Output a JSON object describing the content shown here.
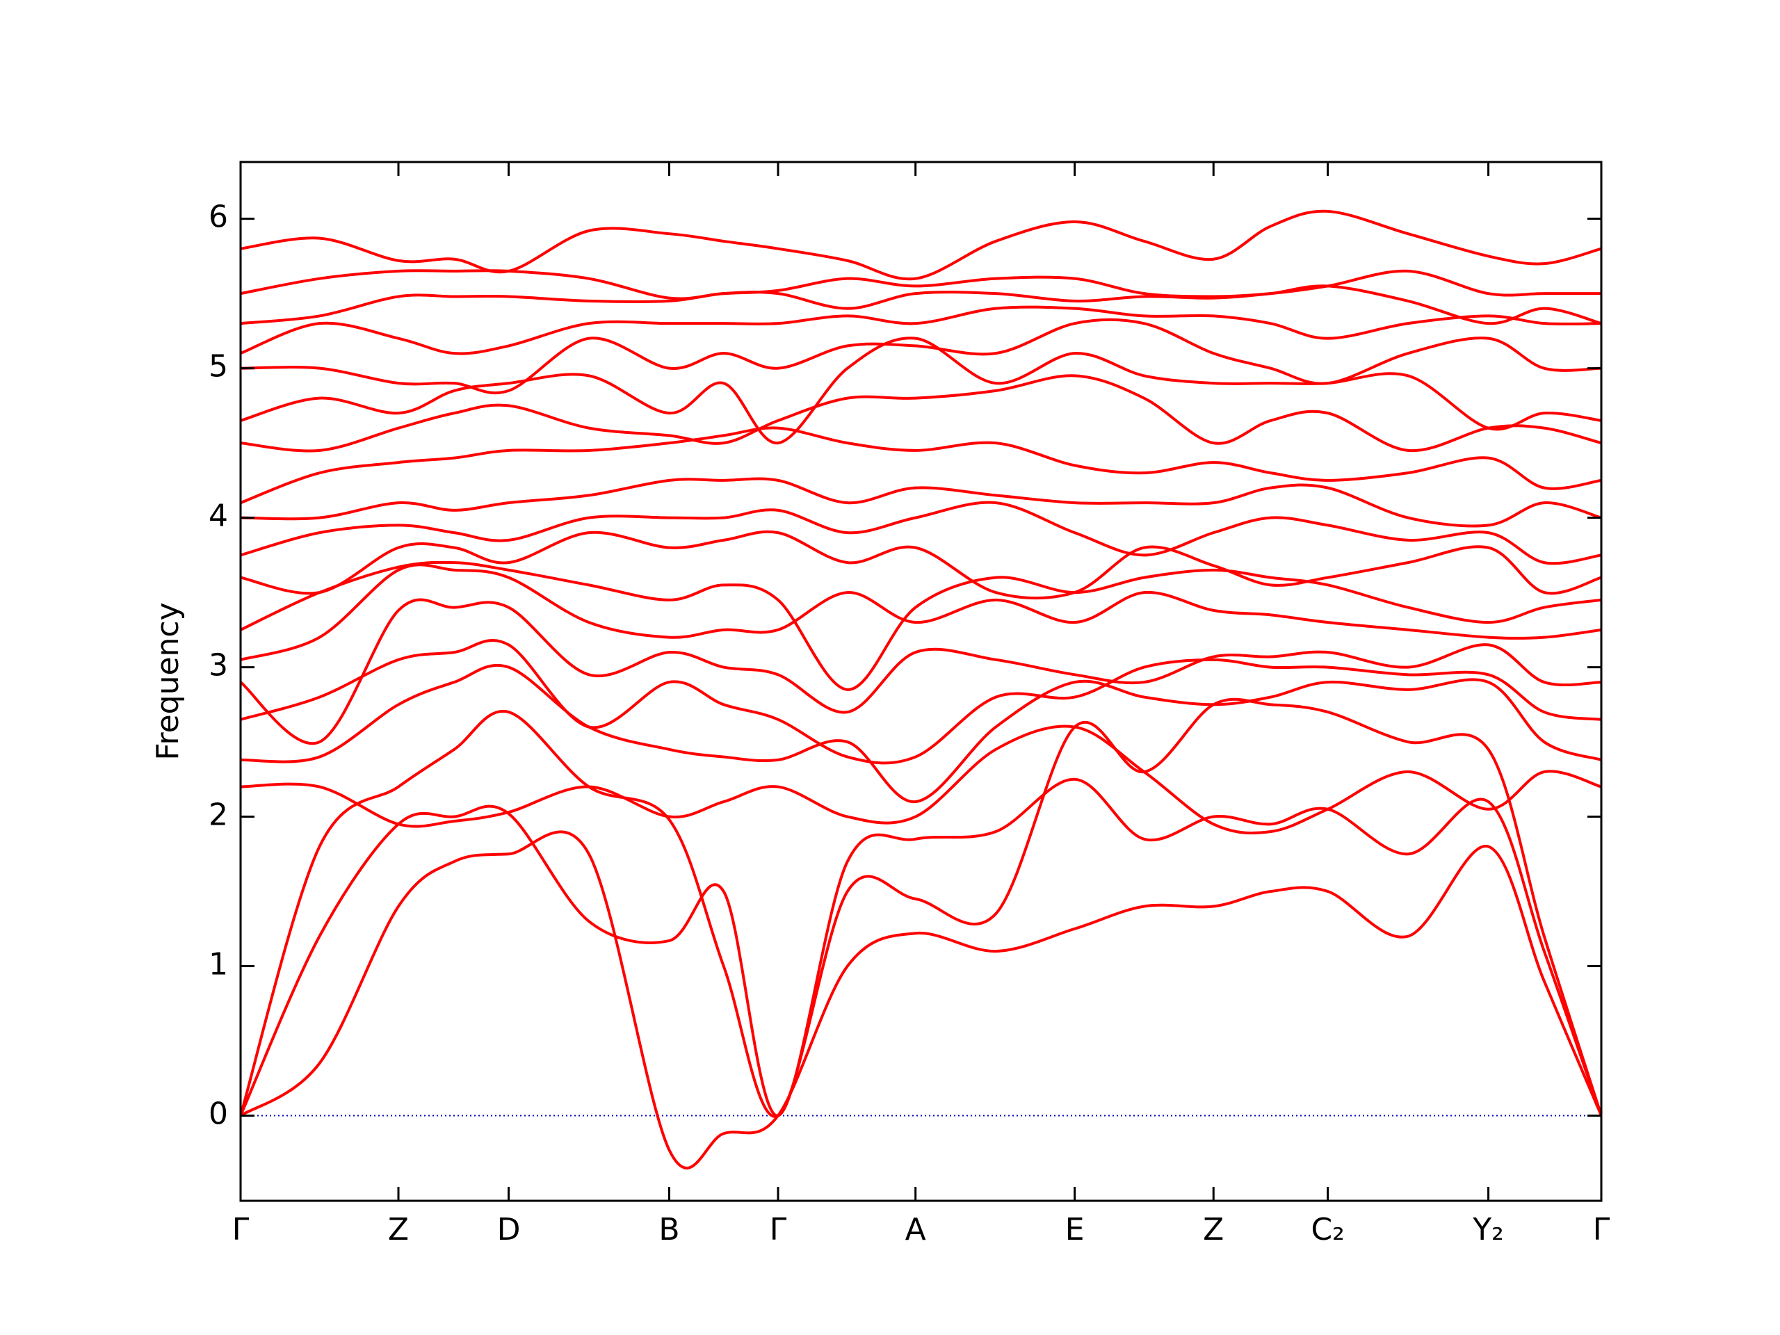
{
  "chart_data": {
    "type": "line",
    "y_label": "Frequency",
    "color": "#ff0000",
    "hline": 0,
    "hline_color": "#0000cc",
    "xlim": [
      0,
      1
    ],
    "ylim": [
      -0.57,
      6.38
    ],
    "yticks": [
      0,
      1,
      2,
      3,
      4,
      5,
      6
    ],
    "xticks": [
      {
        "value": 0,
        "label": "Γ"
      },
      {
        "value": 0.116,
        "label": "Z"
      },
      {
        "value": 0.197,
        "label": "D"
      },
      {
        "value": 0.315,
        "label": "B"
      },
      {
        "value": 0.395,
        "label": "Γ"
      },
      {
        "value": 0.496,
        "label": "A"
      },
      {
        "value": 0.613,
        "label": "E"
      },
      {
        "value": 0.715,
        "label": "Z"
      },
      {
        "value": 0.799,
        "label": "C₂"
      },
      {
        "value": 0.917,
        "label": "Y₂"
      },
      {
        "value": 1,
        "label": "Γ"
      }
    ],
    "x": [
      0,
      0.058,
      0.116,
      0.157,
      0.197,
      0.256,
      0.315,
      0.355,
      0.395,
      0.446,
      0.496,
      0.555,
      0.613,
      0.664,
      0.715,
      0.757,
      0.799,
      0.858,
      0.917,
      0.958,
      1
    ],
    "series": [
      {
        "values": [
          0,
          0.35,
          1.4,
          1.7,
          1.75,
          1.75,
          -0.23,
          -0.12,
          0,
          1.0,
          1.22,
          1.1,
          1.25,
          1.4,
          1.4,
          1.5,
          1.5,
          1.2,
          1.8,
          0.9,
          0
        ]
      },
      {
        "values": [
          0,
          1.2,
          1.95,
          2.0,
          2.02,
          1.3,
          1.17,
          1.5,
          0,
          1.7,
          1.85,
          1.9,
          2.25,
          1.85,
          2.0,
          1.95,
          2.05,
          1.75,
          2.1,
          1.1,
          0
        ]
      },
      {
        "values": [
          0,
          1.8,
          2.2,
          2.45,
          2.7,
          2.2,
          1.98,
          1.0,
          0,
          1.5,
          1.45,
          1.35,
          2.6,
          2.3,
          2.75,
          2.75,
          2.7,
          2.5,
          2.45,
          1.2,
          0
        ]
      },
      {
        "values": [
          2.2,
          2.2,
          1.95,
          1.97,
          2.03,
          2.2,
          2.0,
          2.1,
          2.2,
          2.0,
          2.0,
          2.45,
          2.6,
          2.3,
          1.95,
          1.9,
          2.05,
          2.3,
          2.05,
          2.3,
          2.2
        ]
      },
      {
        "values": [
          2.38,
          2.4,
          2.75,
          2.9,
          3.0,
          2.6,
          2.45,
          2.4,
          2.38,
          2.5,
          2.1,
          2.6,
          2.9,
          2.8,
          2.75,
          2.8,
          2.9,
          2.85,
          2.9,
          2.5,
          2.38
        ]
      },
      {
        "values": [
          2.65,
          2.8,
          3.05,
          3.1,
          3.15,
          2.6,
          2.9,
          2.75,
          2.65,
          2.4,
          2.4,
          2.8,
          2.8,
          3.0,
          3.05,
          3.0,
          3.0,
          2.95,
          2.95,
          2.7,
          2.65
        ]
      },
      {
        "values": [
          2.9,
          2.5,
          3.38,
          3.4,
          3.4,
          2.95,
          3.1,
          3.0,
          2.95,
          2.7,
          3.1,
          3.05,
          2.95,
          2.9,
          3.07,
          3.07,
          3.1,
          3.0,
          3.15,
          2.9,
          2.9
        ]
      },
      {
        "values": [
          3.05,
          3.2,
          3.65,
          3.65,
          3.6,
          3.3,
          3.2,
          3.25,
          3.25,
          3.5,
          3.3,
          3.45,
          3.3,
          3.5,
          3.38,
          3.35,
          3.3,
          3.25,
          3.2,
          3.2,
          3.25
        ]
      },
      {
        "values": [
          3.25,
          3.5,
          3.67,
          3.7,
          3.65,
          3.55,
          3.45,
          3.55,
          3.45,
          2.85,
          3.4,
          3.6,
          3.5,
          3.6,
          3.65,
          3.6,
          3.55,
          3.4,
          3.3,
          3.4,
          3.45
        ]
      },
      {
        "values": [
          3.6,
          3.5,
          3.8,
          3.8,
          3.7,
          3.9,
          3.8,
          3.85,
          3.9,
          3.7,
          3.8,
          3.5,
          3.5,
          3.8,
          3.68,
          3.55,
          3.6,
          3.7,
          3.8,
          3.5,
          3.6
        ]
      },
      {
        "values": [
          3.75,
          3.9,
          3.95,
          3.9,
          3.85,
          4.0,
          4.0,
          4.0,
          4.05,
          3.9,
          4.0,
          4.1,
          3.9,
          3.75,
          3.9,
          4.0,
          3.95,
          3.85,
          3.9,
          3.7,
          3.75
        ]
      },
      {
        "values": [
          4.0,
          4.0,
          4.1,
          4.05,
          4.1,
          4.15,
          4.25,
          4.25,
          4.25,
          4.1,
          4.2,
          4.15,
          4.1,
          4.1,
          4.1,
          4.2,
          4.2,
          4.0,
          3.95,
          4.1,
          4.0
        ]
      },
      {
        "values": [
          4.1,
          4.3,
          4.37,
          4.4,
          4.45,
          4.45,
          4.5,
          4.55,
          4.6,
          4.5,
          4.45,
          4.5,
          4.35,
          4.3,
          4.37,
          4.3,
          4.25,
          4.3,
          4.4,
          4.2,
          4.25
        ]
      },
      {
        "values": [
          4.5,
          4.45,
          4.6,
          4.7,
          4.75,
          4.6,
          4.55,
          4.5,
          4.65,
          4.8,
          4.8,
          4.85,
          4.95,
          4.8,
          4.5,
          4.65,
          4.7,
          4.45,
          4.6,
          4.6,
          4.5
        ]
      },
      {
        "values": [
          4.65,
          4.8,
          4.7,
          4.85,
          4.9,
          4.95,
          4.7,
          4.9,
          4.5,
          5.0,
          5.2,
          4.9,
          5.1,
          4.95,
          4.9,
          4.9,
          4.9,
          4.95,
          4.6,
          4.7,
          4.65
        ]
      },
      {
        "values": [
          5.0,
          5.0,
          4.9,
          4.9,
          4.85,
          5.2,
          5.0,
          5.1,
          5.0,
          5.15,
          5.15,
          5.1,
          5.3,
          5.3,
          5.1,
          5.0,
          4.9,
          5.1,
          5.2,
          5.0,
          5.0
        ]
      },
      {
        "values": [
          5.1,
          5.3,
          5.2,
          5.1,
          5.15,
          5.3,
          5.3,
          5.3,
          5.3,
          5.35,
          5.3,
          5.4,
          5.4,
          5.35,
          5.35,
          5.3,
          5.2,
          5.3,
          5.35,
          5.3,
          5.3
        ]
      },
      {
        "values": [
          5.3,
          5.35,
          5.48,
          5.48,
          5.48,
          5.45,
          5.45,
          5.5,
          5.5,
          5.4,
          5.5,
          5.5,
          5.45,
          5.48,
          5.47,
          5.5,
          5.55,
          5.45,
          5.3,
          5.4,
          5.3
        ]
      },
      {
        "values": [
          5.5,
          5.6,
          5.65,
          5.65,
          5.65,
          5.6,
          5.47,
          5.5,
          5.52,
          5.6,
          5.55,
          5.6,
          5.6,
          5.5,
          5.48,
          5.5,
          5.55,
          5.65,
          5.5,
          5.5,
          5.5
        ]
      },
      {
        "values": [
          5.8,
          5.87,
          5.72,
          5.73,
          5.65,
          5.92,
          5.9,
          5.85,
          5.8,
          5.72,
          5.6,
          5.85,
          5.98,
          5.85,
          5.73,
          5.95,
          6.05,
          5.9,
          5.75,
          5.7,
          5.8
        ]
      }
    ]
  }
}
